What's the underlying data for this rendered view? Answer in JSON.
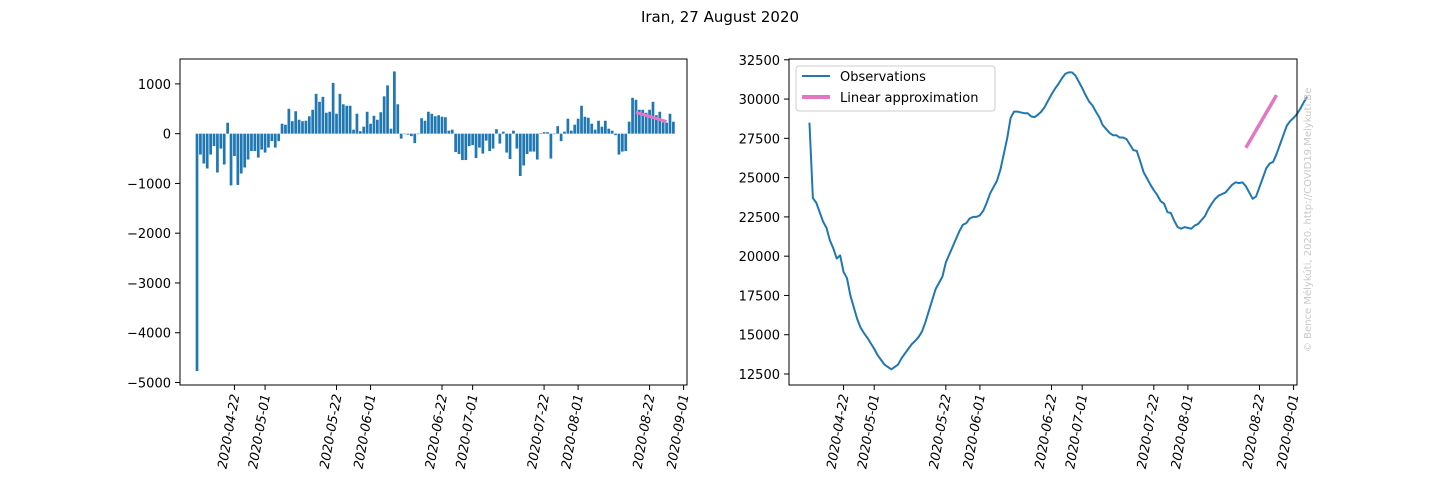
{
  "figure": {
    "title": "Iran, 27 August 2020",
    "watermark": "© Bence Mélykúti, 2020. http://COVID19.Melykuti.Be"
  },
  "colors": {
    "bars": "#1f77b4",
    "observations": "#1f77b4",
    "approximation": "#e377c2"
  },
  "chart_data": [
    {
      "type": "bar",
      "title": "",
      "xlabel": "",
      "ylabel": "",
      "x_start": "2020-04-11",
      "x_end": "2020-08-27",
      "xlim": [
        "2020-04-06",
        "2020-09-02"
      ],
      "ylim": [
        -5050,
        1500
      ],
      "x_ticks": [
        "2020-04-22",
        "2020-05-01",
        "2020-05-22",
        "2020-06-01",
        "2020-06-22",
        "2020-07-01",
        "2020-07-22",
        "2020-08-01",
        "2020-08-22",
        "2020-09-01"
      ],
      "y_ticks": [
        -5000,
        -4000,
        -3000,
        -2000,
        -1000,
        0,
        1000
      ],
      "y_tick_labels": [
        "−5000",
        "−4000",
        "−3000",
        "−2000",
        "−1000",
        "0",
        "1000"
      ],
      "values": [
        -4770,
        -420,
        -600,
        -700,
        -420,
        -250,
        -780,
        -300,
        -620,
        220,
        -1040,
        -450,
        -1030,
        -800,
        -680,
        -520,
        -350,
        -350,
        -480,
        -320,
        -380,
        -280,
        -150,
        -280,
        -150,
        200,
        180,
        500,
        250,
        450,
        280,
        250,
        260,
        350,
        480,
        800,
        640,
        740,
        420,
        440,
        1020,
        400,
        800,
        590,
        560,
        560,
        80,
        400,
        50,
        140,
        440,
        200,
        360,
        280,
        430,
        750,
        970,
        100,
        1250,
        590,
        -100,
        -10,
        -20,
        -50,
        -190,
        -10,
        310,
        260,
        440,
        400,
        350,
        370,
        340,
        330,
        60,
        80,
        -370,
        -410,
        -530,
        -530,
        -250,
        -230,
        -490,
        -280,
        -400,
        -140,
        -350,
        -300,
        90,
        -200,
        40,
        -380,
        -510,
        60,
        -300,
        -850,
        -640,
        -410,
        -360,
        -360,
        -520,
        10,
        30,
        30,
        -500,
        0,
        150,
        -150,
        40,
        300,
        60,
        180,
        300,
        560,
        340,
        320,
        200,
        80,
        260,
        140,
        260,
        100,
        60,
        -30,
        -420,
        -360,
        -350,
        240,
        720,
        680,
        480,
        480,
        420,
        480,
        640,
        370,
        440,
        230,
        220,
        400,
        240
      ]
    },
    {
      "type": "line",
      "title": "",
      "xlabel": "",
      "ylabel": "",
      "xlim": [
        "2020-04-06",
        "2020-09-02"
      ],
      "ylim": [
        11800,
        32550
      ],
      "x_ticks": [
        "2020-04-22",
        "2020-05-01",
        "2020-05-22",
        "2020-06-01",
        "2020-06-22",
        "2020-07-01",
        "2020-07-22",
        "2020-08-01",
        "2020-08-22",
        "2020-09-01"
      ],
      "y_ticks": [
        12500,
        15000,
        17500,
        20000,
        22500,
        25000,
        27500,
        30000,
        32500
      ],
      "legend_position": "top-left",
      "series": [
        {
          "name": "Observations",
          "x_start": "2020-04-12",
          "x_end": "2020-08-27",
          "values": [
            28500,
            23700,
            23400,
            22800,
            22200,
            21800,
            21000,
            20500,
            19850,
            20050,
            19000,
            18600,
            17500,
            16750,
            16000,
            15450,
            15100,
            14800,
            14450,
            14100,
            13700,
            13400,
            13100,
            12950,
            12800,
            12950,
            13100,
            13500,
            13800,
            14100,
            14400,
            14600,
            14850,
            15200,
            15800,
            16500,
            17200,
            17900,
            18300,
            18700,
            19600,
            20100,
            20600,
            21100,
            21600,
            22000,
            22100,
            22400,
            22500,
            22500,
            22600,
            22900,
            23400,
            24000,
            24400,
            24800,
            25500,
            26500,
            27500,
            28800,
            29200,
            29200,
            29150,
            29100,
            29100,
            28900,
            28850,
            29000,
            29200,
            29500,
            29900,
            30300,
            30650,
            30950,
            31300,
            31600,
            31700,
            31700,
            31500,
            31100,
            30700,
            30250,
            29850,
            29600,
            29200,
            28850,
            28350,
            28100,
            27850,
            27700,
            27700,
            27550,
            27550,
            27450,
            27100,
            26750,
            26700,
            26050,
            25350,
            24950,
            24550,
            24200,
            23900,
            23500,
            23350,
            22800,
            22750,
            22250,
            21850,
            21750,
            21850,
            21800,
            21750,
            21950,
            22050,
            22300,
            22550,
            23000,
            23350,
            23650,
            23850,
            23950,
            24050,
            24300,
            24550,
            24700,
            24650,
            24700,
            24450,
            24050,
            23650,
            23800,
            24400,
            25000,
            25600,
            25900,
            26000,
            26500,
            27100,
            27700,
            28300,
            28600,
            28800,
            29050,
            29400,
            29800,
            30150
          ]
        },
        {
          "name": "Linear approximation",
          "x": [
            "2020-08-18",
            "2020-08-27"
          ],
          "values": [
            26900,
            30250
          ]
        }
      ]
    }
  ]
}
